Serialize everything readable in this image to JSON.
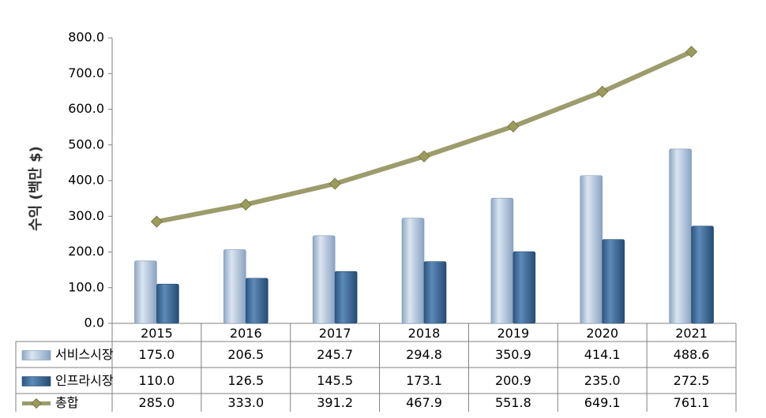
{
  "chart_data": {
    "type": "bar",
    "categories": [
      "2015",
      "2016",
      "2017",
      "2018",
      "2019",
      "2020",
      "2021"
    ],
    "ylabel": "수익 (백만 $)",
    "ylim": [
      0,
      800
    ],
    "ytick_step": 100,
    "ytick_labels": [
      "0.0",
      "100.0",
      "200.0",
      "300.0",
      "400.0",
      "500.0",
      "600.0",
      "700.0",
      "800.0"
    ],
    "legend_placement": "data-table-left",
    "grid": false,
    "series": [
      {
        "name": "서비스시장",
        "kind": "bar",
        "color": "#a9bfd8",
        "values": [
          175.0,
          206.5,
          245.7,
          294.8,
          350.9,
          414.1,
          488.6
        ],
        "labels": [
          "175.0",
          "206.5",
          "245.7",
          "294.8",
          "350.9",
          "414.1",
          "488.6"
        ]
      },
      {
        "name": "인프라시장",
        "kind": "bar",
        "color": "#3d6e9c",
        "values": [
          110.0,
          126.5,
          145.5,
          173.1,
          200.9,
          235.0,
          272.5
        ],
        "labels": [
          "110.0",
          "126.5",
          "145.5",
          "173.1",
          "200.9",
          "235.0",
          "272.5"
        ]
      },
      {
        "name": "총합",
        "kind": "line",
        "color": "#9c9c6c",
        "marker_color": "#9c9c5a",
        "values": [
          285.0,
          333.0,
          391.2,
          467.9,
          551.8,
          649.1,
          761.1
        ],
        "labels": [
          "285.0",
          "333.0",
          "391.2",
          "467.9",
          "551.8",
          "649.1",
          "761.1"
        ]
      }
    ]
  }
}
